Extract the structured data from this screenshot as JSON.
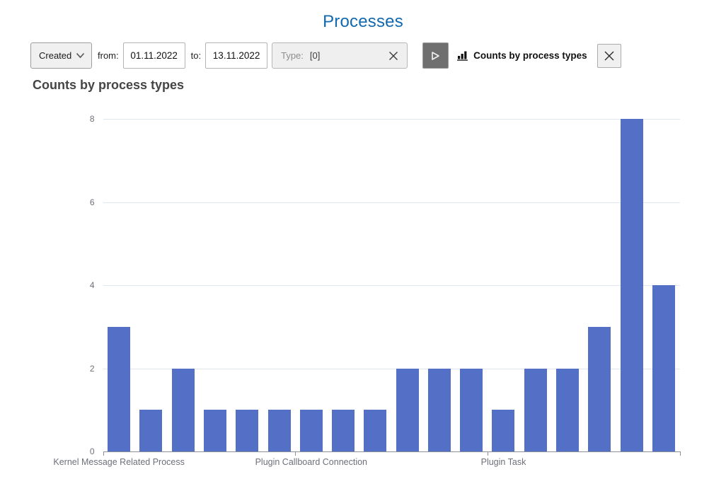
{
  "page": {
    "title": "Processes",
    "title_color": "#1269b0"
  },
  "toolbar": {
    "created_select": {
      "value": "Created"
    },
    "from_label": "from:",
    "from_value": "01.11.2022",
    "to_label": "to:",
    "to_value": "13.11.2022",
    "type_field": {
      "label": "Type:",
      "value": "[0]"
    },
    "chart_toggle": {
      "label": "Counts by process types"
    }
  },
  "chart": {
    "heading": "Counts by process types"
  },
  "chart_data": {
    "type": "bar",
    "title": "Counts by process types",
    "categories": [
      "Kernel Message Related Process",
      "",
      "",
      "",
      "",
      "",
      "Plugin Callboard Connection",
      "",
      "",
      "",
      "",
      "",
      "Plugin Task",
      "",
      "",
      "",
      "",
      ""
    ],
    "values": [
      3,
      1,
      2,
      1,
      1,
      1,
      1,
      1,
      1,
      2,
      2,
      2,
      1,
      2,
      2,
      3,
      8,
      4
    ],
    "xlabel": "",
    "ylabel": "",
    "ylim": [
      0,
      8
    ],
    "yticks": [
      0,
      2,
      4,
      6,
      8
    ],
    "grid": true,
    "legend": false,
    "x_tick_boundary_interval": 6,
    "colors": {
      "bar": "#5470c6",
      "gridline": "#e0e6f1",
      "axis_line": "#8b909a",
      "tick_label": "#6e7079"
    }
  }
}
